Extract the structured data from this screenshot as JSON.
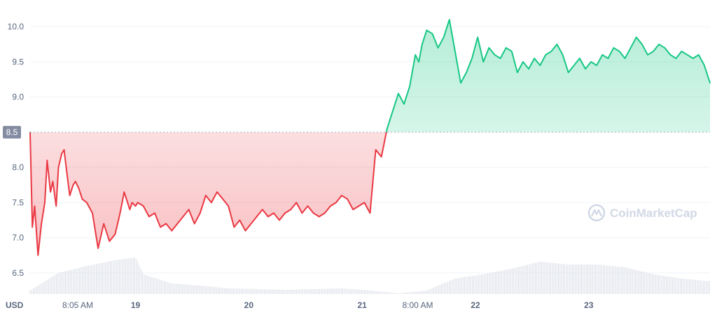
{
  "chart_data": {
    "type": "line",
    "currency_label": "USD",
    "watermark": "CoinMarketCap",
    "colors": {
      "up": "#16c784",
      "down": "#ea3943",
      "volume": "#d9dde6",
      "grid": "#eff2f5",
      "ref_tag": "#858ca2"
    },
    "reference_value": 8.5,
    "reference_label": "8.5",
    "ylim": [
      6.2,
      10.3
    ],
    "x_range": [
      0,
      6.0
    ],
    "y_ticks": [
      {
        "value": 10.0,
        "label": "10.0"
      },
      {
        "value": 9.5,
        "label": "9.5"
      },
      {
        "value": 9.0,
        "label": "9.0"
      },
      {
        "value": 8.0,
        "label": "8.0"
      },
      {
        "value": 7.5,
        "label": "7.5"
      },
      {
        "value": 7.0,
        "label": "7.0"
      },
      {
        "value": 6.5,
        "label": "6.5"
      }
    ],
    "x_ticks": [
      {
        "x": 0.42,
        "label": "8:05 AM",
        "kind": "time"
      },
      {
        "x": 0.93,
        "label": "19",
        "kind": "date"
      },
      {
        "x": 1.93,
        "label": "20",
        "kind": "date"
      },
      {
        "x": 2.93,
        "label": "21",
        "kind": "date"
      },
      {
        "x": 3.42,
        "label": "8:00 AM",
        "kind": "time"
      },
      {
        "x": 3.93,
        "label": "22",
        "kind": "date"
      },
      {
        "x": 4.93,
        "label": "23",
        "kind": "date"
      }
    ],
    "price": {
      "x": [
        0.0,
        0.02,
        0.04,
        0.07,
        0.1,
        0.13,
        0.15,
        0.18,
        0.2,
        0.23,
        0.25,
        0.28,
        0.3,
        0.33,
        0.35,
        0.38,
        0.4,
        0.43,
        0.46,
        0.5,
        0.55,
        0.6,
        0.65,
        0.7,
        0.75,
        0.78,
        0.8,
        0.83,
        0.85,
        0.88,
        0.9,
        0.93,
        0.95,
        1.0,
        1.05,
        1.1,
        1.15,
        1.2,
        1.25,
        1.3,
        1.35,
        1.4,
        1.45,
        1.5,
        1.55,
        1.6,
        1.65,
        1.7,
        1.75,
        1.8,
        1.85,
        1.9,
        1.95,
        2.0,
        2.05,
        2.1,
        2.15,
        2.2,
        2.25,
        2.3,
        2.35,
        2.4,
        2.45,
        2.5,
        2.55,
        2.6,
        2.65,
        2.7,
        2.75,
        2.8,
        2.85,
        2.9,
        2.95,
        3.0,
        3.05,
        3.1,
        3.15,
        3.2,
        3.25,
        3.3,
        3.35,
        3.4,
        3.43,
        3.46,
        3.5,
        3.55,
        3.6,
        3.65,
        3.7,
        3.75,
        3.8,
        3.85,
        3.9,
        3.95,
        4.0,
        4.05,
        4.1,
        4.15,
        4.2,
        4.25,
        4.3,
        4.35,
        4.4,
        4.45,
        4.5,
        4.55,
        4.6,
        4.65,
        4.7,
        4.75,
        4.8,
        4.85,
        4.9,
        4.95,
        5.0,
        5.05,
        5.1,
        5.15,
        5.2,
        5.25,
        5.3,
        5.35,
        5.4,
        5.45,
        5.5,
        5.55,
        5.6,
        5.65,
        5.7,
        5.75,
        5.8,
        5.85,
        5.9,
        5.95,
        6.0
      ],
      "y": [
        8.5,
        7.15,
        7.45,
        6.75,
        7.2,
        7.5,
        8.1,
        7.65,
        7.8,
        7.45,
        8.0,
        8.2,
        8.25,
        7.85,
        7.6,
        7.75,
        7.8,
        7.7,
        7.55,
        7.5,
        7.35,
        6.85,
        7.2,
        6.95,
        7.05,
        7.25,
        7.4,
        7.65,
        7.55,
        7.4,
        7.5,
        7.45,
        7.5,
        7.45,
        7.3,
        7.35,
        7.15,
        7.2,
        7.1,
        7.2,
        7.3,
        7.4,
        7.2,
        7.35,
        7.6,
        7.5,
        7.65,
        7.55,
        7.45,
        7.15,
        7.25,
        7.1,
        7.2,
        7.3,
        7.4,
        7.3,
        7.35,
        7.25,
        7.35,
        7.4,
        7.5,
        7.35,
        7.45,
        7.35,
        7.3,
        7.35,
        7.45,
        7.5,
        7.6,
        7.55,
        7.4,
        7.45,
        7.5,
        7.35,
        8.25,
        8.15,
        8.55,
        8.8,
        9.05,
        8.9,
        9.15,
        9.6,
        9.5,
        9.75,
        9.95,
        9.9,
        9.7,
        9.85,
        10.1,
        9.65,
        9.2,
        9.35,
        9.55,
        9.85,
        9.5,
        9.7,
        9.6,
        9.55,
        9.7,
        9.65,
        9.35,
        9.5,
        9.4,
        9.55,
        9.45,
        9.6,
        9.65,
        9.75,
        9.6,
        9.35,
        9.45,
        9.55,
        9.4,
        9.5,
        9.45,
        9.6,
        9.55,
        9.7,
        9.65,
        9.55,
        9.7,
        9.85,
        9.75,
        9.6,
        9.65,
        9.75,
        9.7,
        9.6,
        9.55,
        9.65,
        9.6,
        9.55,
        9.6,
        9.45,
        9.2
      ]
    },
    "volume": {
      "x": [
        0.0,
        0.25,
        0.5,
        0.75,
        0.93,
        1.0,
        1.25,
        1.5,
        1.75,
        2.0,
        2.25,
        2.5,
        2.75,
        2.93,
        3.0,
        3.25,
        3.5,
        3.75,
        4.0,
        4.25,
        4.5,
        4.75,
        5.0,
        5.25,
        5.5,
        5.75,
        6.0
      ],
      "y": [
        6.25,
        6.5,
        6.6,
        6.68,
        6.72,
        6.48,
        6.35,
        6.32,
        6.28,
        6.27,
        6.26,
        6.27,
        6.28,
        6.26,
        6.25,
        6.21,
        6.25,
        6.42,
        6.48,
        6.56,
        6.66,
        6.62,
        6.62,
        6.58,
        6.48,
        6.42,
        6.38
      ]
    }
  }
}
